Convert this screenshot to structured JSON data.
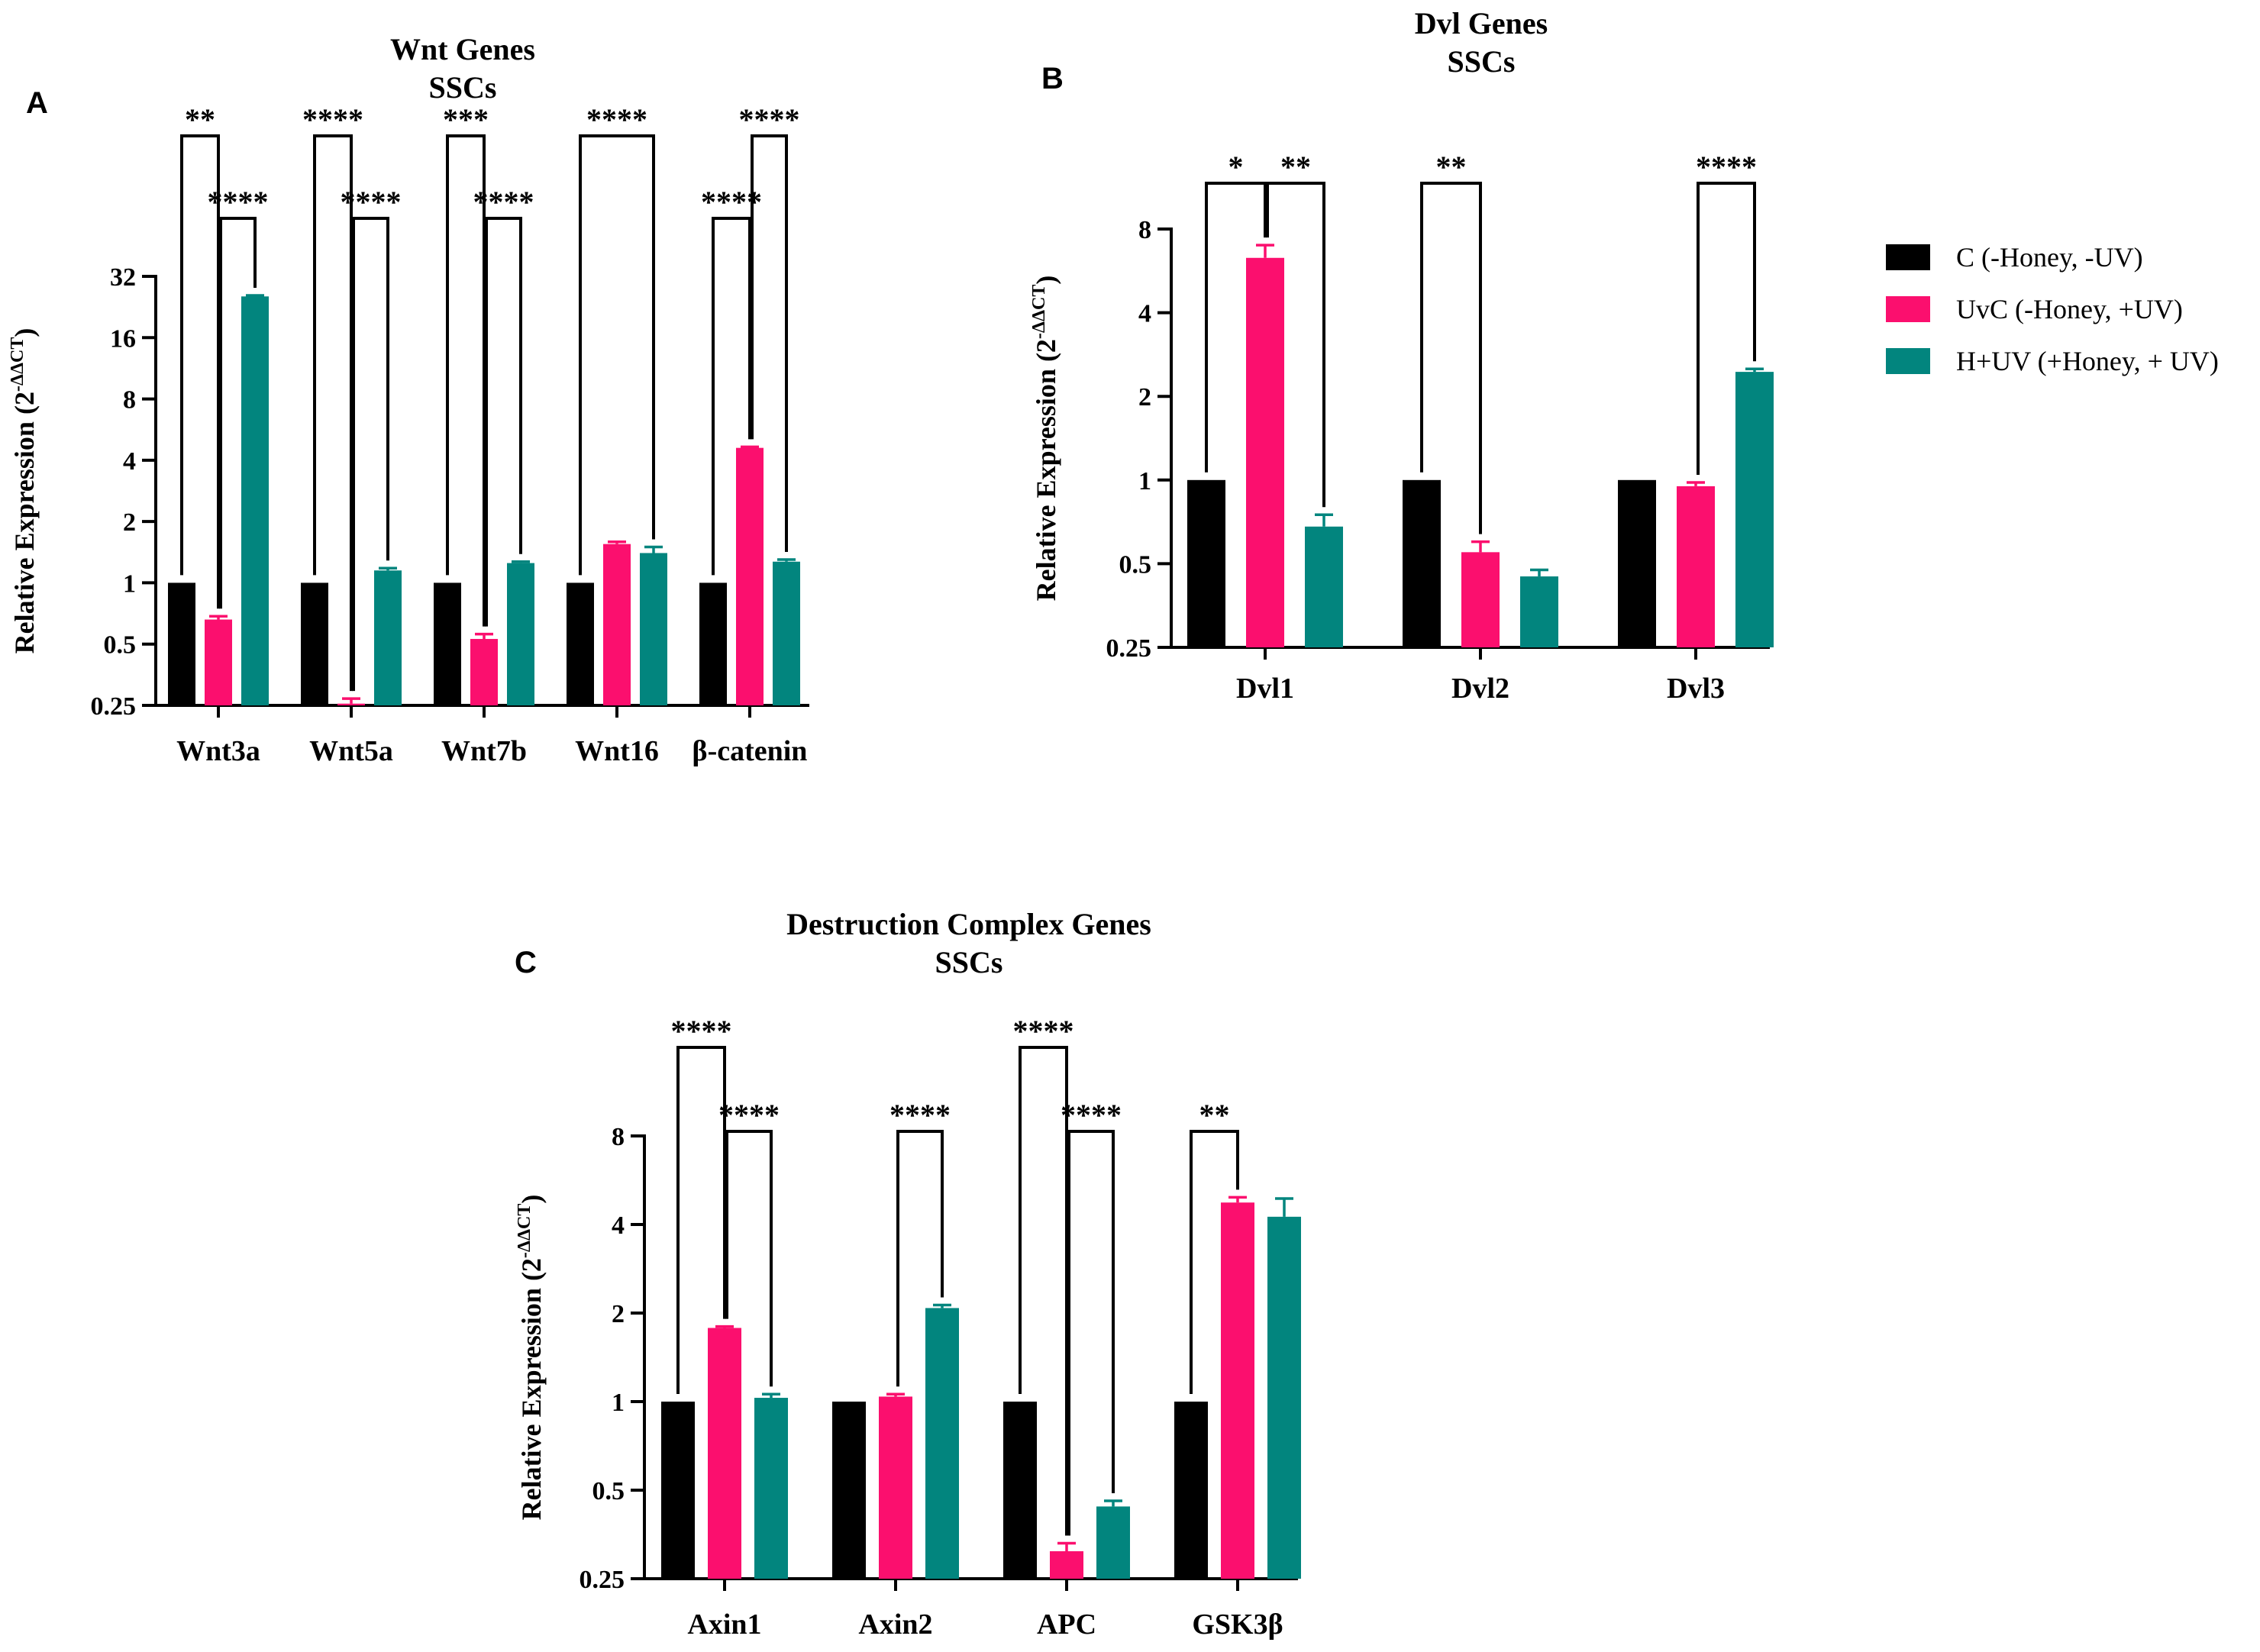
{
  "colors": {
    "C": "#000000",
    "UvC": "#fb0f6e",
    "HUV": "#02857e"
  },
  "legend": [
    {
      "key": "C",
      "label": "C (-Honey, -UV)"
    },
    {
      "key": "UvC",
      "label": "UvC (-Honey, +UV)"
    },
    {
      "key": "HUV",
      "label": "H+UV (+Honey, + UV)"
    }
  ],
  "chart_data": [
    {
      "panel": "A",
      "type": "bar",
      "title": "Wnt Genes",
      "subtitle": "SSCs",
      "ylabel": "Relative Expression (2",
      "ylabel_sup": "-ΔΔCT",
      "ylabel_close": ")",
      "yscale": "log2",
      "ylim": [
        0.25,
        32
      ],
      "yticks": [
        0.25,
        0.5,
        1,
        2,
        4,
        8,
        16,
        32
      ],
      "ytick_labels": [
        "0.25",
        "0.5",
        "1",
        "2",
        "4",
        "8",
        "16",
        "32"
      ],
      "categories": [
        "Wnt3a",
        "Wnt5a",
        "Wnt7b",
        "Wnt16",
        "β-catenin"
      ],
      "series": [
        {
          "key": "C",
          "name": "C (-Honey, -UV)",
          "values": [
            1,
            1,
            1,
            1,
            1
          ],
          "errors": [
            0,
            0,
            0,
            0,
            0
          ]
        },
        {
          "key": "UvC",
          "name": "UvC (-Honey, +UV)",
          "values": [
            0.66,
            0.255,
            0.53,
            1.55,
            4.6
          ],
          "errors": [
            0.025,
            0.015,
            0.03,
            0.04,
            0.05
          ]
        },
        {
          "key": "HUV",
          "name": "H+UV (+Honey, + UV)",
          "values": [
            25.5,
            1.15,
            1.25,
            1.4,
            1.27
          ],
          "errors": [
            0.3,
            0.03,
            0.02,
            0.1,
            0.03
          ]
        }
      ],
      "significance": [
        {
          "category": 0,
          "from": 0,
          "to": 1,
          "label": "**",
          "level": 0
        },
        {
          "category": 0,
          "from": 1,
          "to": 2,
          "label": "****",
          "level": 1
        },
        {
          "category": 1,
          "from": 0,
          "to": 1,
          "label": "****",
          "level": 0
        },
        {
          "category": 1,
          "from": 1,
          "to": 2,
          "label": "****",
          "level": 1
        },
        {
          "category": 2,
          "from": 0,
          "to": 1,
          "label": "***",
          "level": 0
        },
        {
          "category": 2,
          "from": 1,
          "to": 2,
          "label": "****",
          "level": 1
        },
        {
          "category": 3,
          "from": 0,
          "to": 2,
          "label": "****",
          "level": 0
        },
        {
          "category": 4,
          "from": 1,
          "to": 2,
          "label": "****",
          "level": 0
        },
        {
          "category": 4,
          "from": 0,
          "to": 1,
          "label": "****",
          "level": 1
        }
      ]
    },
    {
      "panel": "B",
      "type": "bar",
      "title": "Dvl Genes",
      "subtitle": "SSCs",
      "ylabel": "Relative Expression (2",
      "ylabel_sup": "-ΔΔCT",
      "ylabel_close": ")",
      "yscale": "log2",
      "ylim": [
        0.25,
        8
      ],
      "yticks": [
        0.25,
        0.5,
        1,
        2,
        4,
        8
      ],
      "ytick_labels": [
        "0.25",
        "0.5",
        "1",
        "2",
        "4",
        "8"
      ],
      "categories": [
        "Dvl1",
        "Dvl2",
        "Dvl3"
      ],
      "series": [
        {
          "key": "C",
          "name": "C (-Honey, -UV)",
          "values": [
            1,
            1,
            1
          ],
          "errors": [
            0,
            0,
            0
          ]
        },
        {
          "key": "UvC",
          "name": "UvC (-Honey, +UV)",
          "values": [
            6.3,
            0.55,
            0.95
          ],
          "errors": [
            0.7,
            0.05,
            0.03
          ]
        },
        {
          "key": "HUV",
          "name": "H+UV (+Honey, + UV)",
          "values": [
            0.68,
            0.45,
            2.45
          ],
          "errors": [
            0.07,
            0.025,
            0.06
          ]
        }
      ],
      "significance": [
        {
          "category": 0,
          "from": 0,
          "to": 1,
          "label": "*",
          "level": 0
        },
        {
          "category": 0,
          "from": 1,
          "to": 2,
          "label": "**",
          "level": 0
        },
        {
          "category": 1,
          "from": 0,
          "to": 1,
          "label": "**",
          "level": 0
        },
        {
          "category": 2,
          "from": 1,
          "to": 2,
          "label": "****",
          "level": 0
        }
      ]
    },
    {
      "panel": "C",
      "type": "bar",
      "title": "Destruction Complex Genes",
      "subtitle": "SSCs",
      "ylabel": "Relative Expression (2",
      "ylabel_sup": "-ΔΔCT",
      "ylabel_close": ")",
      "yscale": "log2",
      "ylim": [
        0.25,
        8
      ],
      "yticks": [
        0.25,
        0.5,
        1,
        2,
        4,
        8
      ],
      "ytick_labels": [
        "0.25",
        "0.5",
        "1",
        "2",
        "4",
        "8"
      ],
      "categories": [
        "Axin1",
        "Axin2",
        "APC",
        "GSK3β"
      ],
      "series": [
        {
          "key": "C",
          "name": "C (-Honey, -UV)",
          "values": [
            1,
            1,
            1,
            1
          ],
          "errors": [
            0,
            0,
            0,
            0
          ]
        },
        {
          "key": "UvC",
          "name": "UvC (-Honey, +UV)",
          "values": [
            1.78,
            1.04,
            0.31,
            4.75
          ],
          "errors": [
            0.02,
            0.02,
            0.02,
            0.2
          ]
        },
        {
          "key": "HUV",
          "name": "H+UV (+Honey, + UV)",
          "values": [
            1.03,
            2.08,
            0.44,
            4.25
          ],
          "errors": [
            0.03,
            0.05,
            0.02,
            0.65
          ]
        }
      ],
      "significance": [
        {
          "category": 0,
          "from": 0,
          "to": 1,
          "label": "****",
          "level": 0
        },
        {
          "category": 0,
          "from": 1,
          "to": 2,
          "label": "****",
          "level": 1
        },
        {
          "category": 1,
          "from": 1,
          "to": 2,
          "label": "****",
          "level": 1
        },
        {
          "category": 2,
          "from": 0,
          "to": 1,
          "label": "****",
          "level": 0
        },
        {
          "category": 2,
          "from": 1,
          "to": 2,
          "label": "****",
          "level": 1
        },
        {
          "category": 3,
          "from": 0,
          "to": 1,
          "label": "**",
          "level": 1
        }
      ]
    }
  ]
}
